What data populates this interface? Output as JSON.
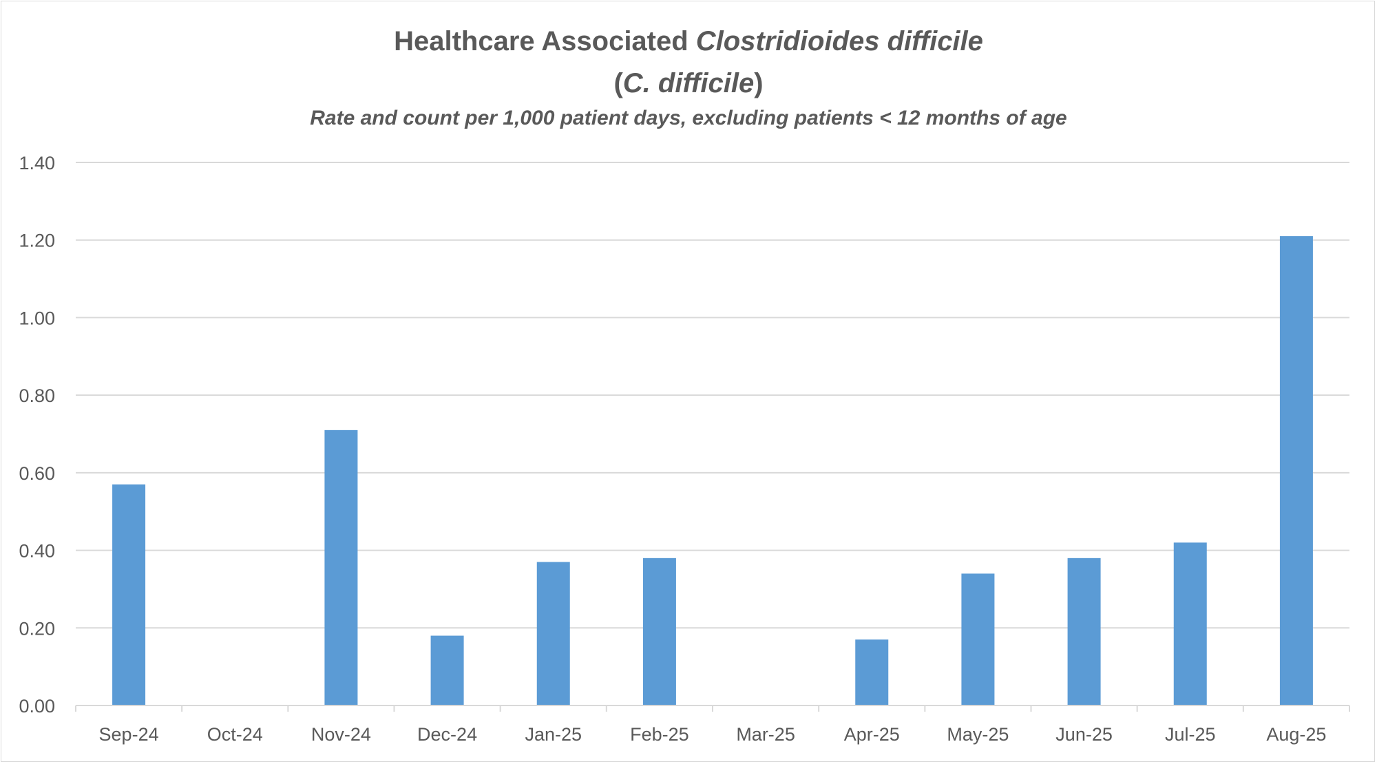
{
  "chart_data": {
    "type": "bar",
    "title_line1_plain": "Healthcare Associated ",
    "title_line1_italic": "Clostridioides difficile",
    "title_line2_open": "(",
    "title_line2_italic": "C. difficile",
    "title_line2_close": ")",
    "subtitle": "Rate and count per 1,000 patient days, excluding patients < 12 months of age",
    "xlabel": "",
    "ylabel": "",
    "categories": [
      "Sep-24",
      "Oct-24",
      "Nov-24",
      "Dec-24",
      "Jan-25",
      "Feb-25",
      "Mar-25",
      "Apr-25",
      "May-25",
      "Jun-25",
      "Jul-25",
      "Aug-25"
    ],
    "values": [
      0.57,
      0.0,
      0.71,
      0.18,
      0.37,
      0.38,
      0.0,
      0.17,
      0.34,
      0.38,
      0.42,
      1.21
    ],
    "ylim": [
      0,
      1.4
    ],
    "yticks": [
      "0.00",
      "0.20",
      "0.40",
      "0.60",
      "0.80",
      "1.00",
      "1.20",
      "1.40"
    ],
    "grid": true,
    "legend": "none",
    "colors": {
      "bar": "#5b9bd5",
      "grid": "#d9d9d9",
      "text": "#595959"
    }
  }
}
